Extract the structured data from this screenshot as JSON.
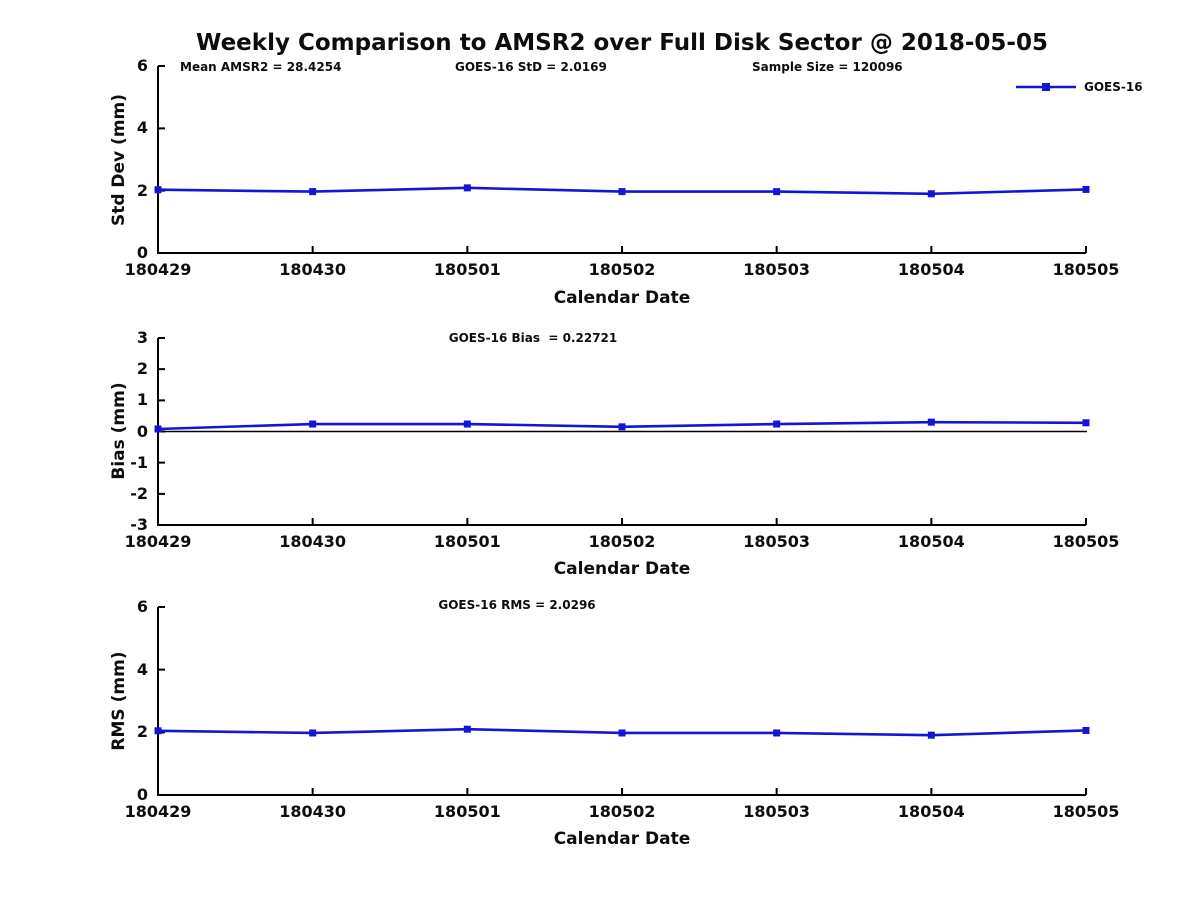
{
  "title": "Weekly Comparison to AMSR2 over Full Disk Sector @ 2018-05-05",
  "legend": {
    "label": "GOES-16"
  },
  "colors": {
    "series": "#1414d6",
    "axis": "#000000",
    "zero_line": "#000000",
    "background": "#ffffff"
  },
  "chart_data": [
    {
      "type": "line",
      "name": "std-dev-panel",
      "title": "",
      "annotations": [
        "Mean AMSR2 = 28.4254",
        "GOES-16 StD = 2.0169",
        "Sample Size = 120096"
      ],
      "ylabel": "Std Dev (mm)",
      "xlabel": "Calendar Date",
      "categories": [
        "180429",
        "180430",
        "180501",
        "180502",
        "180503",
        "180504",
        "180505"
      ],
      "series": [
        {
          "name": "GOES-16",
          "values": [
            2.03,
            1.97,
            2.09,
            1.97,
            1.97,
            1.9,
            2.04
          ]
        }
      ],
      "ylim": [
        0,
        6
      ],
      "yticks": [
        0,
        2,
        4,
        6
      ],
      "grid": false,
      "legend_position": "top-right",
      "marker": "square"
    },
    {
      "type": "line",
      "name": "bias-panel",
      "title": "",
      "annotations": [
        "GOES-16 Bias  = 0.22721"
      ],
      "ylabel": "Bias (mm)",
      "xlabel": "Calendar Date",
      "categories": [
        "180429",
        "180430",
        "180501",
        "180502",
        "180503",
        "180504",
        "180505"
      ],
      "series": [
        {
          "name": "GOES-16",
          "values": [
            0.08,
            0.24,
            0.24,
            0.15,
            0.24,
            0.3,
            0.28
          ]
        }
      ],
      "ylim": [
        -3,
        3
      ],
      "yticks": [
        3,
        2,
        1,
        0,
        -1,
        -2,
        -3
      ],
      "zero_line": true,
      "grid": false,
      "marker": "square"
    },
    {
      "type": "line",
      "name": "rms-panel",
      "title": "",
      "annotations": [
        "GOES-16 RMS = 2.0296"
      ],
      "ylabel": "RMS (mm)",
      "xlabel": "Calendar Date",
      "categories": [
        "180429",
        "180430",
        "180501",
        "180502",
        "180503",
        "180504",
        "180505"
      ],
      "series": [
        {
          "name": "GOES-16",
          "values": [
            2.05,
            1.98,
            2.1,
            1.98,
            1.98,
            1.91,
            2.06
          ]
        }
      ],
      "ylim": [
        0,
        6
      ],
      "yticks": [
        0,
        2,
        4,
        6
      ],
      "grid": false,
      "marker": "square"
    }
  ]
}
